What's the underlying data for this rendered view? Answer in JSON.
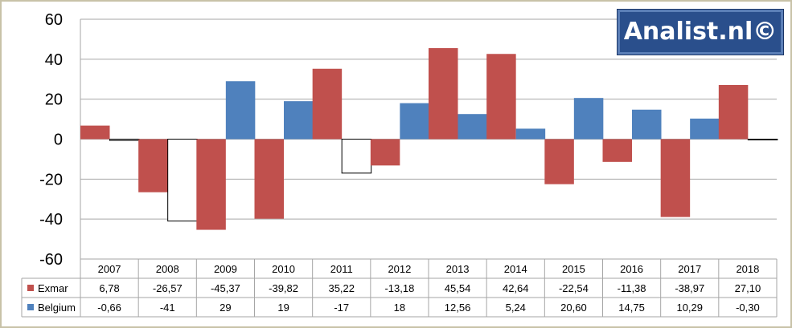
{
  "brand": {
    "logo_text": "Analist.nl©"
  },
  "colors": {
    "exmar": "#c0504d",
    "belgium": "#4f81bd",
    "grid": "#a6a6a6"
  },
  "chart_data": {
    "type": "bar",
    "title": "",
    "xlabel": "",
    "ylabel": "",
    "ylim": [
      -60,
      60
    ],
    "yticks": [
      -60,
      -40,
      -20,
      0,
      20,
      40,
      60
    ],
    "grid": true,
    "legend": "data-table-left",
    "categories": [
      "2007",
      "2008",
      "2009",
      "2010",
      "2011",
      "2012",
      "2013",
      "2014",
      "2015",
      "2016",
      "2017",
      "2018"
    ],
    "series": [
      {
        "name": "Exmar",
        "color": "#c0504d",
        "values": [
          6.78,
          -26.57,
          -45.37,
          -39.82,
          35.22,
          -13.18,
          45.54,
          42.64,
          -22.54,
          -11.38,
          -38.97,
          27.1
        ],
        "labels": [
          "6,78",
          "-26,57",
          "-45,37",
          "-39,82",
          "35,22",
          "-13,18",
          "45,54",
          "42,64",
          "-22,54",
          "-11,38",
          "-38,97",
          "27,10"
        ]
      },
      {
        "name": "Belgium",
        "color": "#4f81bd",
        "values": [
          -0.66,
          -41,
          29,
          19,
          -17,
          18,
          12.56,
          5.24,
          20.6,
          14.75,
          10.29,
          -0.3
        ],
        "labels": [
          "-0,66",
          "-41",
          "29",
          "19",
          "-17",
          "18",
          "12,56",
          "5,24",
          "20,60",
          "14,75",
          "10,29",
          "-0,30"
        ]
      }
    ]
  }
}
